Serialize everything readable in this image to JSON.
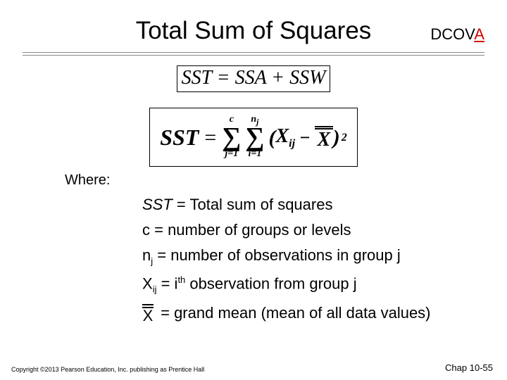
{
  "title": "Total Sum of Squares",
  "dcova": {
    "prefix": "DCOV",
    "highlight": "A",
    "highlight_color": "#d40000"
  },
  "identity": "SST = SSA + SSW",
  "formula": {
    "lhs": "SST",
    "eq": "=",
    "sum1": {
      "upper": "c",
      "lower": "j=1"
    },
    "sum2": {
      "upper_left": "n",
      "upper_sub": "j",
      "lower": "i=1"
    },
    "term": {
      "x": "X",
      "sub": "ij",
      "minus": "−",
      "xbar": "X",
      "power": "2"
    }
  },
  "where_label": "Where:",
  "defs": {
    "sst": {
      "sym": "SST",
      "text": " = Total sum of squares"
    },
    "c": {
      "sym": "c",
      "text": " = number of groups or levels"
    },
    "nj": {
      "sym": "n",
      "sub": "j",
      "text": " = number of observations in group j"
    },
    "xij": {
      "sym": "X",
      "sub": "ij",
      "mid": " = i",
      "sup": "th",
      "tail": " observation from group j"
    },
    "xbar": {
      "sym": "X",
      "text": " = grand mean (mean of all data values)"
    }
  },
  "footer": "Copyright ©2013 Pearson Education, Inc. publishing as Prentice Hall",
  "pagenum": "Chap 10-55",
  "colors": {
    "text": "#000000",
    "rule": "#888888",
    "bg": "#ffffff"
  }
}
